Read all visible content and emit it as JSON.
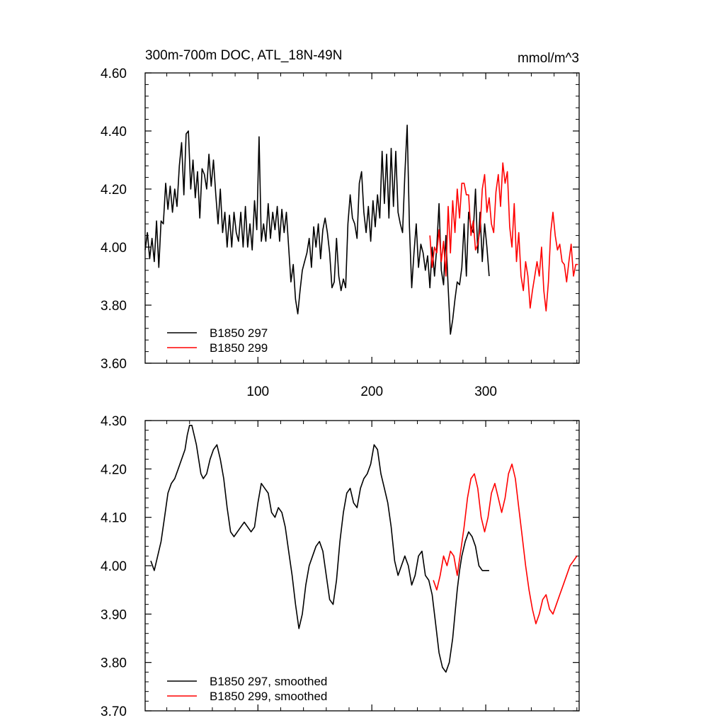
{
  "chart_data": [
    {
      "type": "line",
      "title": "300m-700m DOC, ATL_18N-49N",
      "units": "mmol/m^3",
      "xlim": [
        1,
        382
      ],
      "ylim": [
        3.6,
        4.6
      ],
      "yticks": [
        3.6,
        3.8,
        4.0,
        4.2,
        4.4,
        4.6
      ],
      "ytick_labels": [
        "3.60",
        "3.80",
        "4.00",
        "4.20",
        "4.40",
        "4.60"
      ],
      "xticks": [
        100,
        200,
        300
      ],
      "xtick_labels": [
        "100",
        "200",
        "300"
      ],
      "legend_position": "bottom-left",
      "series": [
        {
          "name": "B1850 297",
          "color": "#000000",
          "x": [
            1,
            3,
            5,
            7,
            9,
            11,
            13,
            15,
            17,
            19,
            21,
            23,
            25,
            27,
            29,
            31,
            33,
            35,
            37,
            39,
            41,
            43,
            45,
            47,
            49,
            51,
            53,
            55,
            57,
            59,
            61,
            63,
            65,
            67,
            69,
            71,
            73,
            75,
            77,
            79,
            81,
            83,
            85,
            87,
            89,
            91,
            93,
            95,
            97,
            99,
            101,
            103,
            105,
            107,
            109,
            111,
            113,
            115,
            117,
            119,
            121,
            123,
            125,
            127,
            129,
            131,
            133,
            135,
            137,
            139,
            141,
            143,
            145,
            147,
            149,
            151,
            153,
            155,
            157,
            159,
            161,
            163,
            165,
            167,
            169,
            171,
            173,
            175,
            177,
            179,
            181,
            183,
            185,
            187,
            189,
            191,
            193,
            195,
            197,
            199,
            201,
            203,
            205,
            207,
            209,
            211,
            213,
            215,
            217,
            219,
            221,
            223,
            225,
            227,
            229,
            231,
            233,
            235,
            237,
            239,
            241,
            243,
            245,
            247,
            249,
            251,
            253,
            255,
            257,
            259,
            261,
            263,
            265,
            267,
            269,
            271,
            273,
            275,
            277,
            279,
            281,
            283,
            285,
            287,
            289,
            291,
            293,
            295,
            297,
            299,
            301,
            303
          ],
          "y": [
            3.99,
            4.05,
            3.96,
            4.03,
            3.95,
            4.09,
            3.93,
            4.09,
            4.08,
            4.22,
            4.13,
            4.21,
            4.12,
            4.2,
            4.14,
            4.28,
            4.36,
            4.18,
            4.39,
            4.4,
            4.2,
            4.3,
            4.17,
            4.26,
            4.1,
            4.27,
            4.25,
            4.2,
            4.32,
            4.21,
            4.3,
            4.18,
            4.08,
            4.2,
            4.05,
            4.12,
            4.0,
            4.11,
            4.0,
            4.12,
            4.05,
            4.02,
            4.12,
            4.0,
            4.14,
            4.0,
            4.08,
            3.99,
            4.16,
            4.06,
            4.38,
            4.02,
            4.08,
            4.02,
            4.15,
            4.03,
            4.12,
            4.06,
            4.14,
            4.02,
            4.13,
            4.05,
            4.12,
            4.0,
            3.88,
            3.94,
            3.82,
            3.77,
            3.85,
            3.92,
            3.95,
            3.98,
            4.03,
            3.93,
            4.07,
            4.0,
            4.08,
            3.96,
            4.06,
            4.1,
            4.05,
            3.98,
            3.86,
            3.88,
            4.03,
            3.9,
            3.85,
            3.89,
            3.86,
            4.08,
            4.18,
            4.1,
            4.08,
            4.03,
            4.22,
            4.26,
            4.12,
            4.05,
            4.14,
            4.02,
            4.16,
            4.07,
            4.18,
            4.1,
            4.33,
            4.15,
            4.32,
            4.1,
            4.34,
            4.14,
            4.33,
            4.12,
            4.08,
            4.05,
            4.25,
            4.42,
            4.07,
            3.86,
            3.98,
            4.08,
            3.93,
            4.01,
            3.98,
            3.92,
            3.97,
            3.86,
            4.0,
            3.9,
            4.0,
            4.15,
            3.92,
            3.87,
            4.04,
            3.86,
            3.7,
            3.75,
            3.82,
            3.88,
            3.87,
            3.93,
            4.08,
            3.9,
            4.12,
            4.07,
            4.05,
            4.2,
            3.98,
            4.12,
            3.95,
            4.08,
            4.0,
            3.9
          ]
        },
        {
          "name": "B1850 299",
          "color": "#ff0000",
          "x": [
            251,
            253,
            255,
            257,
            259,
            261,
            263,
            265,
            267,
            269,
            271,
            273,
            275,
            277,
            279,
            281,
            283,
            285,
            287,
            289,
            291,
            293,
            295,
            297,
            299,
            301,
            303,
            305,
            307,
            309,
            311,
            313,
            315,
            317,
            319,
            321,
            323,
            325,
            327,
            329,
            331,
            333,
            335,
            337,
            339,
            341,
            343,
            345,
            347,
            349,
            351,
            353,
            355,
            357,
            359,
            361,
            363,
            365,
            367,
            369,
            371,
            373,
            375,
            377,
            379,
            381
          ],
          "y": [
            4.04,
            3.93,
            4.0,
            3.98,
            4.06,
            3.95,
            4.02,
            3.9,
            4.14,
            3.98,
            4.16,
            4.05,
            4.2,
            4.1,
            4.22,
            4.22,
            4.18,
            4.18,
            4.04,
            4.09,
            3.99,
            4.01,
            4.06,
            4.2,
            4.25,
            4.12,
            4.17,
            4.08,
            4.05,
            4.19,
            4.25,
            4.14,
            4.29,
            4.22,
            4.26,
            4.07,
            4.0,
            4.15,
            3.95,
            4.05,
            3.9,
            3.85,
            3.95,
            3.9,
            3.79,
            3.85,
            3.9,
            3.95,
            3.9,
            4.0,
            3.85,
            3.78,
            3.88,
            4.05,
            4.12,
            4.04,
            3.99,
            4.01,
            3.95,
            3.94,
            3.88,
            3.95,
            4.01,
            3.9,
            3.94,
            3.94
          ]
        }
      ]
    },
    {
      "type": "line",
      "xlim": [
        1,
        382
      ],
      "ylim": [
        3.7,
        4.3
      ],
      "yticks": [
        3.7,
        3.8,
        3.9,
        4.0,
        4.1,
        4.2,
        4.3
      ],
      "ytick_labels": [
        "3.70",
        "3.80",
        "3.90",
        "4.00",
        "4.10",
        "4.20",
        "4.30"
      ],
      "xticks": [
        100,
        200,
        300
      ],
      "xtick_labels": [],
      "legend_position": "bottom-left",
      "series": [
        {
          "name": "B1850 297, smoothed",
          "color": "#000000",
          "x": [
            6,
            9,
            12,
            15,
            18,
            21,
            24,
            27,
            30,
            33,
            36,
            38,
            40,
            42,
            44,
            46,
            48,
            50,
            52,
            55,
            58,
            61,
            64,
            67,
            70,
            73,
            76,
            79,
            82,
            85,
            88,
            91,
            94,
            97,
            100,
            103,
            106,
            109,
            112,
            115,
            118,
            121,
            124,
            127,
            130,
            133,
            136,
            139,
            142,
            145,
            148,
            151,
            154,
            157,
            160,
            163,
            166,
            169,
            172,
            175,
            178,
            181,
            184,
            187,
            190,
            193,
            196,
            199,
            202,
            205,
            208,
            211,
            214,
            217,
            220,
            223,
            226,
            229,
            232,
            235,
            238,
            241,
            244,
            247,
            250,
            253,
            256,
            259,
            262,
            265,
            268,
            271,
            273,
            275,
            277,
            279,
            282,
            285,
            288,
            291,
            294,
            297,
            300,
            303
          ],
          "y": [
            4.01,
            3.99,
            4.02,
            4.05,
            4.1,
            4.15,
            4.17,
            4.18,
            4.2,
            4.22,
            4.24,
            4.27,
            4.29,
            4.29,
            4.27,
            4.25,
            4.22,
            4.19,
            4.18,
            4.19,
            4.22,
            4.24,
            4.25,
            4.22,
            4.18,
            4.12,
            4.07,
            4.06,
            4.07,
            4.08,
            4.09,
            4.08,
            4.07,
            4.08,
            4.13,
            4.17,
            4.16,
            4.15,
            4.11,
            4.1,
            4.12,
            4.11,
            4.08,
            4.03,
            3.98,
            3.92,
            3.87,
            3.9,
            3.96,
            4.0,
            4.02,
            4.04,
            4.05,
            4.03,
            3.98,
            3.93,
            3.92,
            3.97,
            4.05,
            4.11,
            4.15,
            4.16,
            4.13,
            4.12,
            4.16,
            4.18,
            4.19,
            4.21,
            4.25,
            4.24,
            4.19,
            4.16,
            4.13,
            4.08,
            4.01,
            3.98,
            4.0,
            4.02,
            4.0,
            3.96,
            3.98,
            4.02,
            4.03,
            3.98,
            3.97,
            3.94,
            3.88,
            3.82,
            3.79,
            3.78,
            3.8,
            3.85,
            3.9,
            3.95,
            3.99,
            4.02,
            4.05,
            4.07,
            4.06,
            4.04,
            4.0,
            3.99,
            3.99,
            3.99
          ]
        },
        {
          "name": "B1850 299, smoothed",
          "color": "#ff0000",
          "x": [
            254,
            257,
            260,
            263,
            266,
            269,
            272,
            275,
            278,
            281,
            284,
            287,
            290,
            293,
            296,
            299,
            302,
            305,
            308,
            311,
            314,
            317,
            320,
            323,
            326,
            329,
            332,
            335,
            338,
            341,
            344,
            347,
            350,
            353,
            356,
            359,
            362,
            365,
            368,
            371,
            374,
            377,
            380
          ],
          "y": [
            3.97,
            3.95,
            3.98,
            4.02,
            4.0,
            4.03,
            4.02,
            3.98,
            4.03,
            4.08,
            4.14,
            4.18,
            4.19,
            4.16,
            4.1,
            4.07,
            4.1,
            4.15,
            4.17,
            4.14,
            4.11,
            4.14,
            4.19,
            4.21,
            4.18,
            4.12,
            4.06,
            4.0,
            3.95,
            3.91,
            3.88,
            3.9,
            3.93,
            3.94,
            3.91,
            3.9,
            3.92,
            3.94,
            3.96,
            3.98,
            4.0,
            4.01,
            4.02
          ]
        }
      ]
    }
  ]
}
